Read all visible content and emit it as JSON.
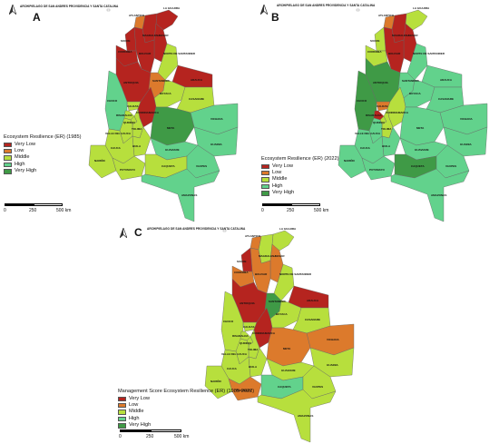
{
  "archipelago_label": "ARCHIPIELAGO DE SAN ANDRES PROVIDENCIA Y SANTA CATALINA",
  "north_icon": "north-arrow-icon",
  "colors": {
    "very_low": "#b5241f",
    "low": "#dc7a2c",
    "middle": "#b7df3d",
    "high": "#62d28c",
    "very_high": "#3f9a46",
    "border": "#666666"
  },
  "panels": [
    {
      "letter": "A",
      "legend_title": "Ecosystem Resilience (ER) (1985)",
      "scale": [
        "0",
        "250",
        "500 km"
      ]
    },
    {
      "letter": "B",
      "legend_title": "Ecosystem Resilience (ER) (2022)",
      "scale": [
        "0",
        "250",
        "500 km"
      ]
    },
    {
      "letter": "C",
      "legend_title": "Management Score Ecosystem Resilience (ER) (1985-2022)",
      "scale": [
        "0",
        "250",
        "500 km"
      ]
    }
  ],
  "legend_items": [
    "Very Low",
    "Low",
    "Middle",
    "High",
    "Very High"
  ],
  "department_labels": {
    "atlantico": "ATLANTICO",
    "la_guajira": "LA GUAJIRA",
    "magdalena": "MAGDALENA",
    "cesar": "CESAR",
    "bolivar": "BOLIVAR",
    "sucre": "SUCRE",
    "cordoba": "CORDOBA",
    "norte_de_santander": "NORTE DE SANTANDER",
    "antioquia": "ANTIOQUIA",
    "santander": "SANTANDER",
    "arauca": "ARAUCA",
    "boyaca": "BOYACA",
    "choco": "CHOCO",
    "casanare": "CASANARE",
    "caldas": "CALDAS",
    "cundinamarca": "CUNDINAMARCA",
    "vichada": "VICHADA",
    "risaralda": "RISARALDA",
    "quindio": "QUINDIO",
    "tolima": "TOLIMA",
    "valle_del_cauca": "VALLE DEL CAUCA",
    "meta": "META",
    "huila": "HUILA",
    "guainia": "GUAINIA",
    "cauca": "CAUCA",
    "guaviare": "GUAVIARE",
    "narino": "NARIÑO",
    "putumayo": "PUTUMAYO",
    "caqueta": "CAQUETA",
    "vaupes": "VAUPES",
    "amazonas": "AMAZONAS"
  },
  "maps": {
    "A": {
      "la_guajira": "very_low",
      "magdalena": "very_low",
      "atlantico": "low",
      "cesar": "very_low",
      "bolivar": "very_low",
      "sucre": "very_low",
      "cordoba": "very_low",
      "norte_de_santander": "middle",
      "antioquia": "very_low",
      "santander": "low",
      "arauca": "very_low",
      "choco": "high",
      "boyaca": "middle",
      "casanare": "middle",
      "caldas": "middle",
      "risaralda": "middle",
      "cundinamarca": "very_low",
      "quindio": "middle",
      "tolima": "middle",
      "valle_del_cauca": "middle",
      "meta": "very_high",
      "vichada": "high",
      "huila": "middle",
      "cauca": "middle",
      "narino": "middle",
      "putumayo": "middle",
      "caqueta": "middle",
      "guaviare": "high",
      "guainia": "high",
      "vaupes": "high",
      "amazonas": "high"
    },
    "B": {
      "la_guajira": "middle",
      "magdalena": "very_low",
      "atlantico": "low",
      "cesar": "very_low",
      "bolivar": "very_low",
      "sucre": "middle",
      "cordoba": "middle",
      "norte_de_santander": "high",
      "antioquia": "very_high",
      "santander": "high",
      "arauca": "high",
      "choco": "very_high",
      "boyaca": "high",
      "casanare": "high",
      "caldas": "low",
      "risaralda": "very_low",
      "cundinamarca": "middle",
      "quindio": "middle",
      "tolima": "middle",
      "valle_del_cauca": "high",
      "meta": "high",
      "vichada": "high",
      "huila": "high",
      "cauca": "high",
      "narino": "high",
      "putumayo": "high",
      "caqueta": "very_high",
      "guaviare": "high",
      "guainia": "high",
      "vaupes": "high",
      "amazonas": "high"
    },
    "C": {
      "la_guajira": "middle",
      "magdalena": "middle",
      "atlantico": "low",
      "cesar": "low",
      "bolivar": "low",
      "sucre": "very_low",
      "cordoba": "low",
      "norte_de_santander": "middle",
      "antioquia": "very_low",
      "santander": "very_high",
      "arauca": "very_low",
      "choco": "middle",
      "boyaca": "middle",
      "casanare": "middle",
      "caldas": "middle",
      "risaralda": "middle",
      "cundinamarca": "very_low",
      "quindio": "middle",
      "tolima": "middle",
      "valle_del_cauca": "middle",
      "meta": "low",
      "vichada": "low",
      "huila": "middle",
      "cauca": "middle",
      "narino": "middle",
      "putumayo": "low",
      "caqueta": "high",
      "guaviare": "middle",
      "guainia": "middle",
      "vaupes": "middle",
      "amazonas": "middle"
    }
  }
}
